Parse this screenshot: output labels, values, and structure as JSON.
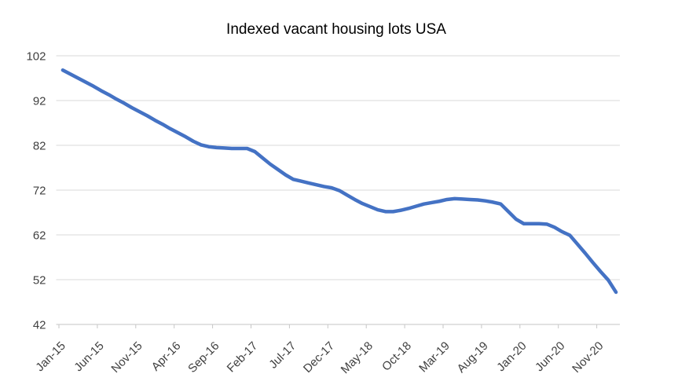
{
  "chart_data": {
    "type": "line",
    "title": "Indexed vacant housing lots USA",
    "xlabel": "",
    "ylabel": "",
    "legend_position": "none",
    "grid": true,
    "ylim": [
      42,
      102
    ],
    "yticks": [
      102,
      92,
      82,
      72,
      62,
      52,
      42
    ],
    "x_tick_interval_months": 5,
    "x_tick_labels": [
      "Jan-15",
      "Jun-15",
      "Nov-15",
      "Apr-16",
      "Sep-16",
      "Feb-17",
      "Jul-17",
      "Dec-17",
      "May-18",
      "Oct-18",
      "Mar-19",
      "Aug-19",
      "Jan-20",
      "Jun-20",
      "Nov-20"
    ],
    "x": [
      "Jan-15",
      "Feb-15",
      "Mar-15",
      "Apr-15",
      "May-15",
      "Jun-15",
      "Jul-15",
      "Aug-15",
      "Sep-15",
      "Oct-15",
      "Nov-15",
      "Dec-15",
      "Jan-16",
      "Feb-16",
      "Mar-16",
      "Apr-16",
      "May-16",
      "Jun-16",
      "Jul-16",
      "Aug-16",
      "Sep-16",
      "Oct-16",
      "Nov-16",
      "Dec-16",
      "Jan-17",
      "Feb-17",
      "Mar-17",
      "Apr-17",
      "May-17",
      "Jun-17",
      "Jul-17",
      "Aug-17",
      "Sep-17",
      "Oct-17",
      "Nov-17",
      "Dec-17",
      "Jan-18",
      "Feb-18",
      "Mar-18",
      "Apr-18",
      "May-18",
      "Jun-18",
      "Jul-18",
      "Aug-18",
      "Sep-18",
      "Oct-18",
      "Nov-18",
      "Dec-18",
      "Jan-19",
      "Feb-19",
      "Mar-19",
      "Apr-19",
      "May-19",
      "Jun-19",
      "Jul-19",
      "Aug-19",
      "Sep-19",
      "Oct-19",
      "Nov-19",
      "Dec-19",
      "Jan-20",
      "Feb-20",
      "Mar-20",
      "Apr-20",
      "May-20",
      "Jun-20",
      "Jul-20",
      "Aug-20",
      "Sep-20",
      "Oct-20",
      "Nov-20",
      "Dec-20",
      "Jan-21"
    ],
    "values": [
      98.8,
      97.9,
      97.0,
      96.1,
      95.2,
      94.2,
      93.3,
      92.3,
      91.4,
      90.4,
      89.5,
      88.6,
      87.6,
      86.7,
      85.7,
      84.8,
      83.9,
      82.9,
      82.1,
      81.7,
      81.5,
      81.4,
      81.3,
      81.3,
      81.3,
      80.6,
      79.2,
      77.8,
      76.6,
      75.4,
      74.4,
      74.0,
      73.6,
      73.2,
      72.8,
      72.5,
      71.9,
      70.9,
      69.9,
      69.0,
      68.3,
      67.6,
      67.2,
      67.2,
      67.5,
      67.9,
      68.4,
      68.9,
      69.2,
      69.5,
      69.9,
      70.1,
      70.0,
      69.9,
      69.8,
      69.6,
      69.3,
      68.9,
      67.2,
      65.5,
      64.5,
      64.5,
      64.5,
      64.4,
      63.7,
      62.7,
      61.9,
      59.9,
      57.9,
      55.8,
      53.8,
      51.9,
      49.2
    ],
    "colors": {
      "line": "#4472C4",
      "grid": "#D9D9D9",
      "axis": "#C6C6C6",
      "text": "#404040",
      "title": "#404040",
      "background": "#FFFFFF"
    }
  }
}
